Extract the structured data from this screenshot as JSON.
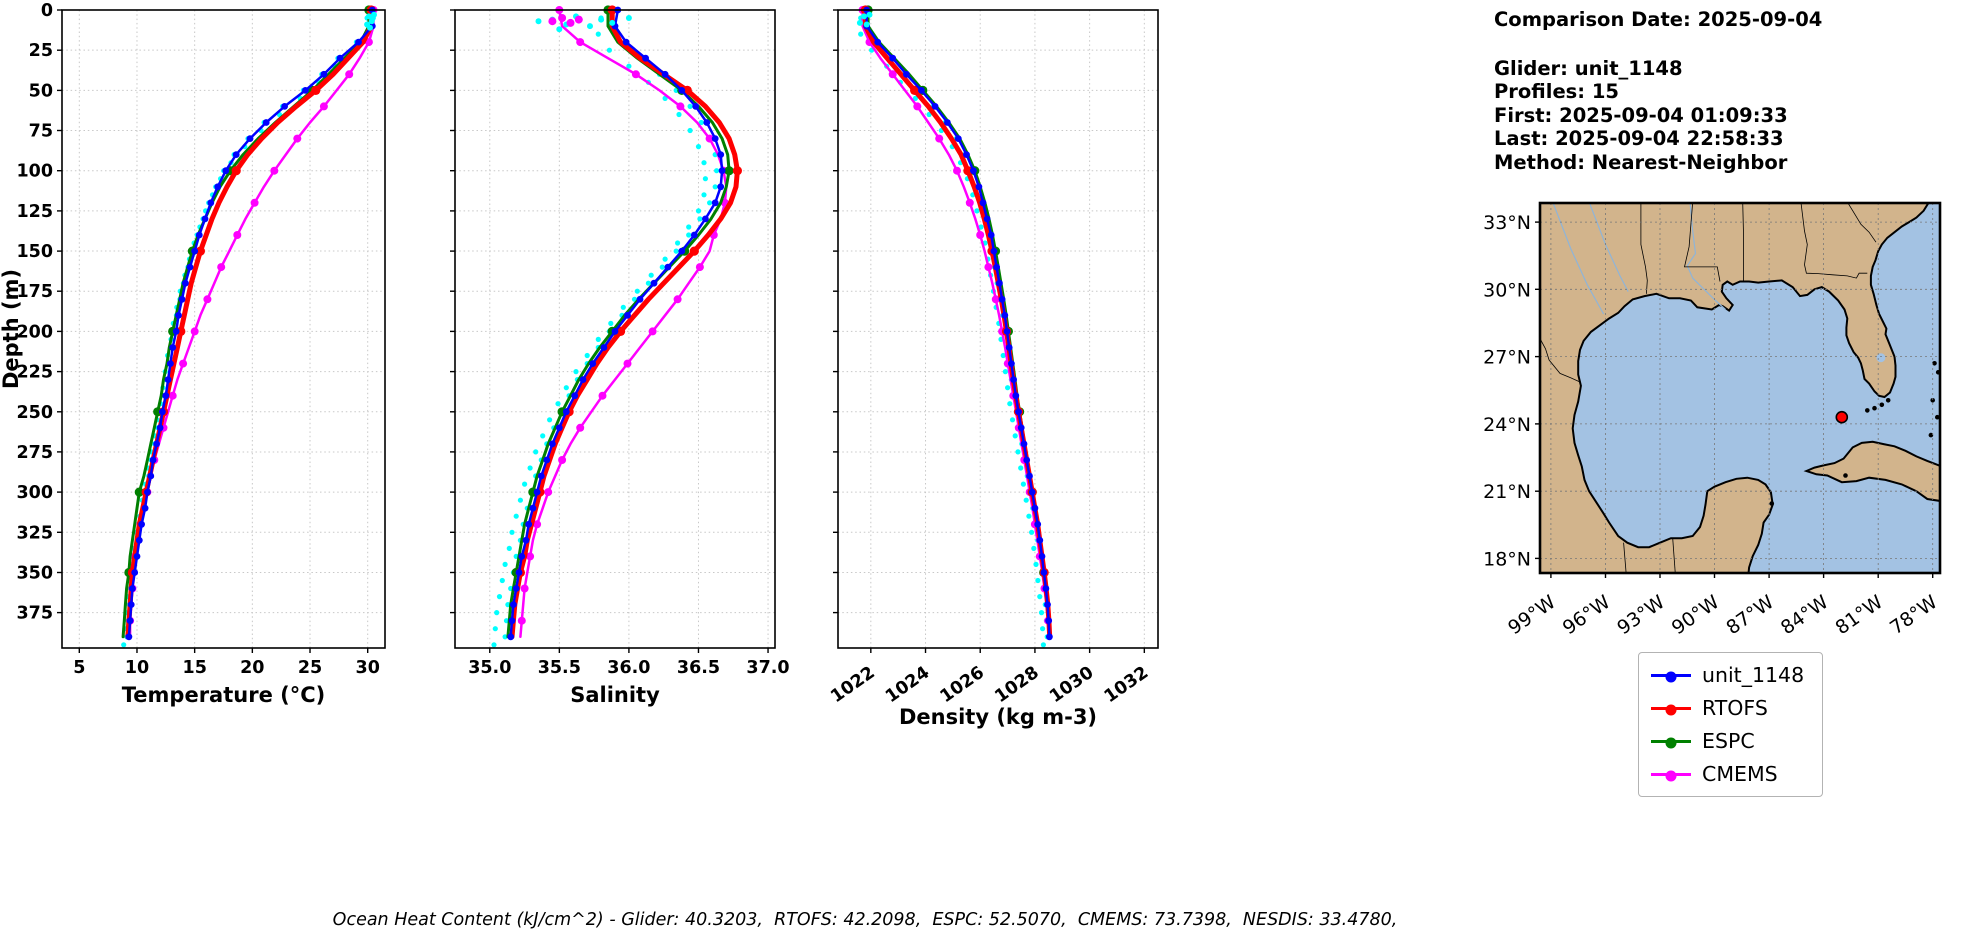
{
  "info": {
    "comparison_date": "Comparison Date: 2025-09-04",
    "glider": "Glider: unit_1148",
    "profiles": "Profiles: 15",
    "first": "First: 2025-09-04 01:09:33",
    "last": "Last: 2025-09-04 22:58:33",
    "method": "Method: Nearest-Neighbor"
  },
  "footer": {
    "ocean_heat_content": "Ocean Heat Content (kJ/cm^2) - Glider: 40.3203,  RTOFS: 42.2098,  ESPC: 52.5070,  CMEMS: 73.7398,  NESDIS: 33.4780,"
  },
  "legend": {
    "entries": [
      {
        "label": "unit_1148",
        "color": "#0000ff"
      },
      {
        "label": "RTOFS",
        "color": "#ff0000"
      },
      {
        "label": "ESPC",
        "color": "#008000"
      },
      {
        "label": "CMEMS",
        "color": "#ff00ff"
      }
    ]
  },
  "map": {
    "land_color": "#d2b48c",
    "ocean_color": "#a3c2e3",
    "marker": {
      "lon": 83.0,
      "lat": 24.3,
      "color": "#ff0000"
    },
    "lat_ticks": [
      {
        "value": 33,
        "label": "33°N"
      },
      {
        "value": 30,
        "label": "30°N"
      },
      {
        "value": 27,
        "label": "27°N"
      },
      {
        "value": 24,
        "label": "24°N"
      },
      {
        "value": 21,
        "label": "21°N"
      },
      {
        "value": 18,
        "label": "18°N"
      }
    ],
    "lon_ticks": [
      {
        "value": 99,
        "label": "99°W"
      },
      {
        "value": 96,
        "label": "96°W"
      },
      {
        "value": 93,
        "label": "93°W"
      },
      {
        "value": 90,
        "label": "90°W"
      },
      {
        "value": 87,
        "label": "87°W"
      },
      {
        "value": 84,
        "label": "84°W"
      },
      {
        "value": 81,
        "label": "81°W"
      },
      {
        "value": 78,
        "label": "78°W"
      }
    ]
  },
  "chart_data": [
    {
      "type": "line",
      "name": "temperature-profile-chart",
      "xlabel": "Temperature (°C)",
      "ylabel": "Depth (m)",
      "xlim": [
        3.5,
        31.5
      ],
      "ylim": [
        0,
        397
      ],
      "xticks": [
        5,
        10,
        15,
        20,
        25,
        30
      ],
      "xtick_labels": [
        "5",
        "10",
        "15",
        "20",
        "25",
        "30"
      ],
      "rotate_xticks": false,
      "yticks": [
        0,
        25,
        50,
        75,
        100,
        125,
        150,
        175,
        200,
        225,
        250,
        275,
        300,
        325,
        350,
        375
      ],
      "depths": [
        0,
        10,
        20,
        30,
        40,
        50,
        60,
        70,
        80,
        90,
        100,
        110,
        120,
        130,
        140,
        150,
        160,
        170,
        180,
        190,
        200,
        210,
        220,
        230,
        240,
        250,
        260,
        270,
        280,
        290,
        300,
        310,
        320,
        330,
        340,
        350,
        360,
        370,
        380,
        390
      ],
      "series": [
        {
          "name": "unit_1148",
          "color": "#0000ff",
          "line_width": 2.5,
          "marker_radius": 3.4,
          "marker_every": 1,
          "values": [
            30.4,
            30.4,
            29.2,
            27.6,
            26.2,
            24.6,
            22.8,
            21.2,
            19.8,
            18.6,
            17.7,
            17.0,
            16.4,
            15.9,
            15.4,
            15.0,
            14.6,
            14.2,
            13.9,
            13.6,
            13.4,
            13.1,
            12.9,
            12.7,
            12.5,
            12.2,
            12.0,
            11.7,
            11.4,
            11.2,
            10.9,
            10.7,
            10.4,
            10.2,
            10.0,
            9.8,
            9.6,
            9.5,
            9.4,
            9.3
          ]
        },
        {
          "name": "RTOFS",
          "color": "#ff0000",
          "line_width": 5,
          "marker_radius": 4.6,
          "marker_every": 5,
          "values": [
            30.3,
            30.3,
            29.6,
            28.3,
            27.0,
            25.5,
            23.8,
            22.2,
            20.8,
            19.6,
            18.6,
            17.8,
            17.1,
            16.5,
            16.0,
            15.5,
            15.1,
            14.7,
            14.4,
            14.1,
            13.8,
            13.5,
            13.2,
            12.9,
            12.6,
            12.3,
            12.0,
            11.7,
            11.4,
            11.1,
            10.8,
            10.5,
            10.2,
            10.0,
            9.8,
            9.6,
            9.5,
            9.4,
            9.3,
            9.2
          ]
        },
        {
          "name": "ESPC",
          "color": "#008000",
          "line_width": 3,
          "marker_radius": 4.6,
          "marker_every": 5,
          "values": [
            30.1,
            30.1,
            29.4,
            28.0,
            26.6,
            25.2,
            23.6,
            22.0,
            20.5,
            19.2,
            18.1,
            17.2,
            16.5,
            15.9,
            15.3,
            14.8,
            14.4,
            14.0,
            13.7,
            13.4,
            13.1,
            12.8,
            12.6,
            12.3,
            12.1,
            11.8,
            11.5,
            11.2,
            10.9,
            10.6,
            10.2,
            10.0,
            9.8,
            9.6,
            9.4,
            9.3,
            9.1,
            9.0,
            8.9,
            8.8
          ]
        },
        {
          "name": "CMEMS",
          "color": "#ff00ff",
          "line_width": 2.5,
          "marker_radius": 4,
          "marker_every": 2,
          "values": [
            30.5,
            30.5,
            30.1,
            29.3,
            28.4,
            27.3,
            26.2,
            25.0,
            23.9,
            22.9,
            21.9,
            21.0,
            20.2,
            19.4,
            18.7,
            18.0,
            17.3,
            16.7,
            16.1,
            15.5,
            15.0,
            14.5,
            14.0,
            13.5,
            13.1,
            12.7,
            12.3,
            11.9,
            11.5,
            11.2,
            10.9,
            10.6,
            10.3,
            10.0,
            9.8,
            9.7,
            9.6,
            9.5,
            9.4,
            9.4
          ]
        }
      ],
      "glider_scatter": {
        "name": "glider-raw-profiles",
        "color": "#00ffff",
        "radius": 2.6,
        "offsets": [
          -0.18,
          -0.45
        ],
        "depth_shift": 5
      },
      "surface_scatter": [
        {
          "color": "#00ffff",
          "radius": 3,
          "points": [
            [
              30.1,
              4
            ],
            [
              30.35,
              7
            ],
            [
              30.55,
              3
            ],
            [
              29.95,
              9
            ],
            [
              30.45,
              5
            ],
            [
              30.2,
              11
            ]
          ]
        }
      ]
    },
    {
      "type": "line",
      "name": "salinity-profile-chart",
      "xlabel": "Salinity",
      "xlim": [
        34.75,
        37.05
      ],
      "ylim": [
        0,
        397
      ],
      "xticks": [
        35.0,
        35.5,
        36.0,
        36.5,
        37.0
      ],
      "xtick_labels": [
        "35.0",
        "35.5",
        "36.0",
        "36.5",
        "37.0"
      ],
      "rotate_xticks": false,
      "yticks": [
        0,
        25,
        50,
        75,
        100,
        125,
        150,
        175,
        200,
        225,
        250,
        275,
        300,
        325,
        350,
        375
      ],
      "depths": [
        0,
        10,
        20,
        30,
        40,
        50,
        60,
        70,
        80,
        90,
        100,
        110,
        120,
        130,
        140,
        150,
        160,
        170,
        180,
        190,
        200,
        210,
        220,
        230,
        240,
        250,
        260,
        270,
        280,
        290,
        300,
        310,
        320,
        330,
        340,
        350,
        360,
        370,
        380,
        390
      ],
      "series": [
        {
          "name": "unit_1148",
          "color": "#0000ff",
          "line_width": 2.5,
          "marker_radius": 3.4,
          "marker_every": 1,
          "values": [
            35.92,
            35.9,
            35.98,
            36.12,
            36.26,
            36.38,
            36.48,
            36.56,
            36.62,
            36.66,
            36.67,
            36.66,
            36.62,
            36.55,
            36.47,
            36.38,
            36.28,
            36.18,
            36.08,
            35.99,
            35.9,
            35.82,
            35.74,
            35.67,
            35.61,
            35.55,
            35.5,
            35.45,
            35.41,
            35.37,
            35.34,
            35.31,
            35.28,
            35.26,
            35.23,
            35.21,
            35.19,
            35.17,
            35.16,
            35.15
          ]
        },
        {
          "name": "RTOFS",
          "color": "#ff0000",
          "line_width": 5,
          "marker_radius": 4.6,
          "marker_every": 5,
          "values": [
            35.88,
            35.88,
            35.94,
            36.08,
            36.25,
            36.42,
            36.55,
            36.65,
            36.72,
            36.76,
            36.78,
            36.77,
            36.73,
            36.66,
            36.57,
            36.47,
            36.36,
            36.25,
            36.14,
            36.04,
            35.94,
            35.85,
            35.77,
            35.7,
            35.63,
            35.57,
            35.52,
            35.47,
            35.43,
            35.39,
            35.36,
            35.33,
            35.3,
            35.27,
            35.25,
            35.22,
            35.2,
            35.18,
            35.17,
            35.16
          ]
        },
        {
          "name": "ESPC",
          "color": "#008000",
          "line_width": 3,
          "marker_radius": 4.6,
          "marker_every": 5,
          "values": [
            35.85,
            35.85,
            35.92,
            36.06,
            36.22,
            36.38,
            36.5,
            36.6,
            36.67,
            36.71,
            36.72,
            36.7,
            36.66,
            36.59,
            36.5,
            36.4,
            36.29,
            36.18,
            36.07,
            35.97,
            35.88,
            35.79,
            35.71,
            35.64,
            35.58,
            35.52,
            35.47,
            35.42,
            35.38,
            35.34,
            35.31,
            35.28,
            35.25,
            35.23,
            35.21,
            35.19,
            35.17,
            35.15,
            35.14,
            35.13
          ]
        },
        {
          "name": "CMEMS",
          "color": "#ff00ff",
          "line_width": 2.5,
          "marker_radius": 4,
          "marker_every": 2,
          "values": [
            35.5,
            35.52,
            35.65,
            35.85,
            36.05,
            36.22,
            36.37,
            36.49,
            36.58,
            36.64,
            36.68,
            36.7,
            36.69,
            36.66,
            36.61,
            36.58,
            36.51,
            36.43,
            36.35,
            36.26,
            36.17,
            36.08,
            35.99,
            35.9,
            35.81,
            35.73,
            35.65,
            35.58,
            35.52,
            35.47,
            35.42,
            35.38,
            35.34,
            35.31,
            35.29,
            35.27,
            35.25,
            35.24,
            35.23,
            35.22
          ]
        }
      ],
      "glider_scatter": {
        "name": "glider-raw-profiles",
        "color": "#00ffff",
        "radius": 2.6,
        "offsets": [
          -0.04,
          -0.12
        ],
        "depth_shift": 5
      },
      "surface_scatter": [
        {
          "color": "#00ffff",
          "radius": 3,
          "points": [
            [
              35.45,
              6
            ],
            [
              35.55,
              9
            ],
            [
              35.62,
              4
            ],
            [
              35.72,
              10
            ],
            [
              35.8,
              6
            ],
            [
              35.88,
              8
            ],
            [
              35.5,
              12
            ],
            [
              36.0,
              5
            ],
            [
              35.35,
              7
            ]
          ]
        },
        {
          "color": "#ff00ff",
          "radius": 4,
          "points": [
            [
              35.45,
              7
            ],
            [
              35.52,
              5
            ],
            [
              35.58,
              8
            ],
            [
              35.64,
              6
            ]
          ]
        }
      ]
    },
    {
      "type": "line",
      "name": "density-profile-chart",
      "xlabel": "Density (kg m-3)",
      "xlim": [
        1020.8,
        1032.5
      ],
      "ylim": [
        0,
        397
      ],
      "xticks": [
        1022,
        1024,
        1026,
        1028,
        1030,
        1032
      ],
      "xtick_labels": [
        "1022",
        "1024",
        "1026",
        "1028",
        "1030",
        "1032"
      ],
      "rotate_xticks": true,
      "yticks": [
        0,
        25,
        50,
        75,
        100,
        125,
        150,
        175,
        200,
        225,
        250,
        275,
        300,
        325,
        350,
        375
      ],
      "depths": [
        0,
        10,
        20,
        30,
        40,
        50,
        60,
        70,
        80,
        90,
        100,
        110,
        120,
        130,
        140,
        150,
        160,
        170,
        180,
        190,
        200,
        210,
        220,
        230,
        240,
        250,
        260,
        270,
        280,
        290,
        300,
        310,
        320,
        330,
        340,
        350,
        360,
        370,
        380,
        390
      ],
      "series": [
        {
          "name": "unit_1148",
          "color": "#0000ff",
          "line_width": 2.5,
          "marker_radius": 3.4,
          "marker_every": 1,
          "values": [
            1021.85,
            1021.85,
            1022.25,
            1022.8,
            1023.3,
            1023.85,
            1024.35,
            1024.8,
            1025.2,
            1025.5,
            1025.75,
            1025.95,
            1026.1,
            1026.25,
            1026.4,
            1026.5,
            1026.6,
            1026.7,
            1026.8,
            1026.9,
            1026.98,
            1027.06,
            1027.14,
            1027.22,
            1027.3,
            1027.4,
            1027.5,
            1027.6,
            1027.7,
            1027.8,
            1027.9,
            1028.0,
            1028.1,
            1028.18,
            1028.26,
            1028.33,
            1028.4,
            1028.46,
            1028.5,
            1028.53
          ]
        },
        {
          "name": "RTOFS",
          "color": "#ff0000",
          "line_width": 5,
          "marker_radius": 4.6,
          "marker_every": 5,
          "values": [
            1021.8,
            1021.8,
            1022.1,
            1022.6,
            1023.1,
            1023.6,
            1024.1,
            1024.55,
            1024.95,
            1025.3,
            1025.55,
            1025.78,
            1025.98,
            1026.15,
            1026.3,
            1026.43,
            1026.55,
            1026.66,
            1026.77,
            1026.87,
            1026.96,
            1027.05,
            1027.13,
            1027.21,
            1027.3,
            1027.4,
            1027.5,
            1027.6,
            1027.7,
            1027.8,
            1027.9,
            1028.0,
            1028.1,
            1028.18,
            1028.26,
            1028.34,
            1028.41,
            1028.47,
            1028.51,
            1028.54
          ]
        },
        {
          "name": "ESPC",
          "color": "#008000",
          "line_width": 3,
          "marker_radius": 4.6,
          "marker_every": 5,
          "values": [
            1021.9,
            1021.9,
            1022.3,
            1022.85,
            1023.4,
            1023.9,
            1024.4,
            1024.85,
            1025.25,
            1025.55,
            1025.8,
            1026.0,
            1026.17,
            1026.32,
            1026.45,
            1026.56,
            1026.66,
            1026.76,
            1026.86,
            1026.95,
            1027.03,
            1027.11,
            1027.19,
            1027.27,
            1027.35,
            1027.44,
            1027.53,
            1027.62,
            1027.71,
            1027.8,
            1027.9,
            1028.0,
            1028.09,
            1028.17,
            1028.25,
            1028.32,
            1028.39,
            1028.45,
            1028.5,
            1028.53
          ]
        },
        {
          "name": "CMEMS",
          "color": "#ff00ff",
          "line_width": 2.5,
          "marker_radius": 4,
          "marker_every": 2,
          "values": [
            1021.7,
            1021.7,
            1021.95,
            1022.35,
            1022.8,
            1023.25,
            1023.7,
            1024.1,
            1024.5,
            1024.85,
            1025.15,
            1025.4,
            1025.62,
            1025.82,
            1026.0,
            1026.16,
            1026.3,
            1026.44,
            1026.57,
            1026.69,
            1026.8,
            1026.91,
            1027.01,
            1027.11,
            1027.21,
            1027.31,
            1027.41,
            1027.51,
            1027.61,
            1027.71,
            1027.81,
            1027.91,
            1028.0,
            1028.09,
            1028.18,
            1028.27,
            1028.35,
            1028.42,
            1028.48,
            1028.52
          ]
        }
      ],
      "glider_scatter": {
        "name": "glider-raw-profiles",
        "color": "#00ffff",
        "radius": 2.6,
        "offsets": [
          -0.08,
          -0.22
        ],
        "depth_shift": 5
      },
      "surface_scatter": [
        {
          "color": "#00ffff",
          "radius": 3,
          "points": [
            [
              1021.75,
              4
            ],
            [
              1021.6,
              8
            ],
            [
              1021.95,
              3
            ],
            [
              1021.85,
              9
            ]
          ]
        }
      ]
    }
  ]
}
